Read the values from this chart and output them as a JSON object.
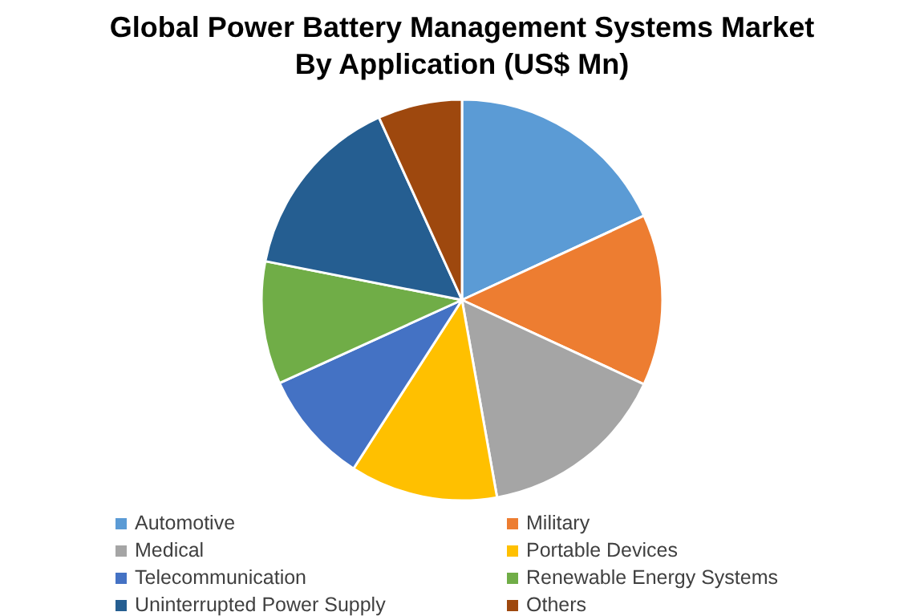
{
  "chart_data": {
    "type": "pie",
    "title": "Global Power Battery Management Systems Market By Application (US$ Mn)",
    "categories": [
      "Automotive",
      "Military",
      "Medical",
      "Portable Devices",
      "Telecommunication",
      "Renewable Energy Systems",
      "Uninterrupted Power Supply",
      "Others"
    ],
    "values": [
      18.1,
      13.8,
      15.3,
      11.9,
      9.1,
      9.9,
      15.1,
      6.8
    ],
    "colors": [
      "#5b9bd5",
      "#ed7d31",
      "#a5a5a5",
      "#ffc000",
      "#4472c4",
      "#70ad47",
      "#255e91",
      "#9e480e"
    ],
    "legend": "bottom"
  }
}
